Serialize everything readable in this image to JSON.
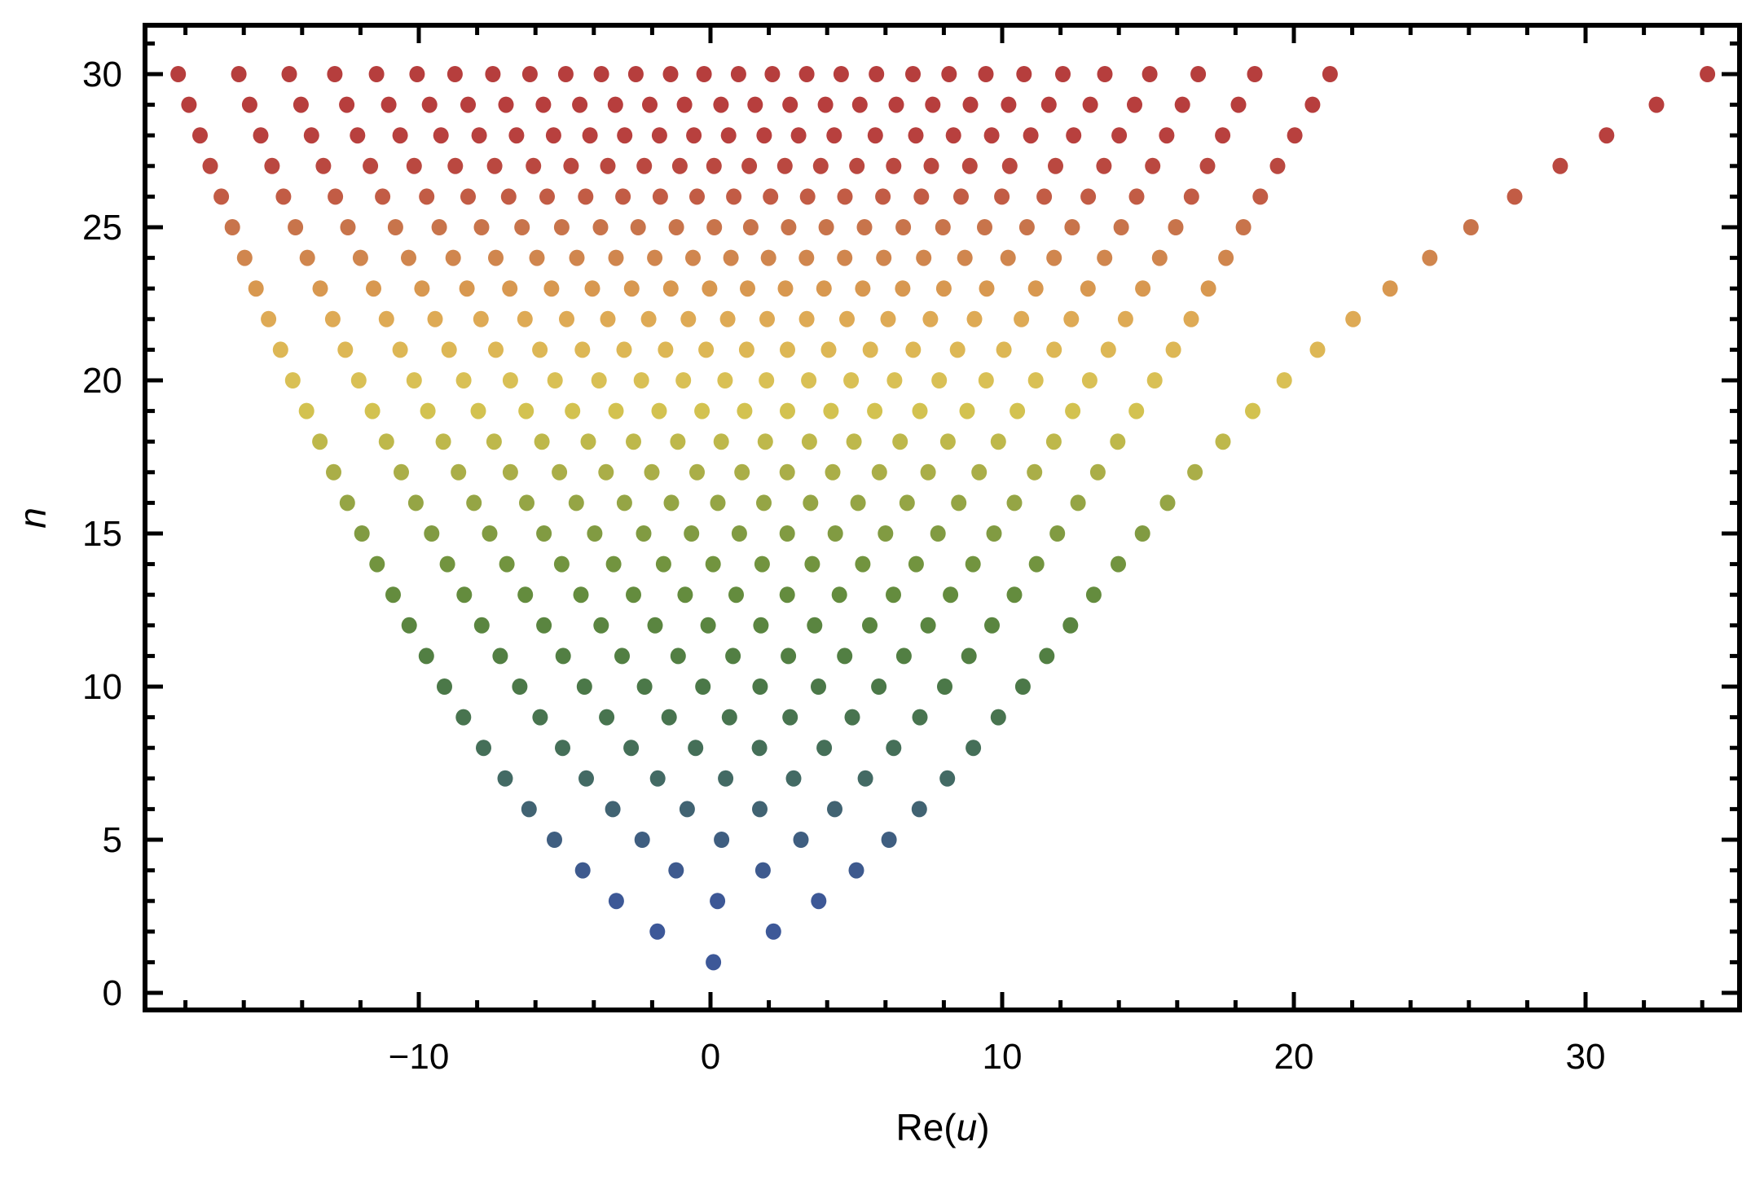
{
  "chart_data": {
    "type": "scatter",
    "title": "",
    "xlabel": "Re(u)",
    "ylabel": "n",
    "xlim": [
      -19.4,
      35.4
    ],
    "ylim": [
      -0.6,
      31.6
    ],
    "grid": false,
    "legend": null,
    "frame": true,
    "x_ticks": [
      -10,
      0,
      10,
      20,
      30
    ],
    "x_tick_labels": [
      "−10",
      "0",
      "10",
      "20",
      "30"
    ],
    "x_minor_step": 2,
    "y_ticks": [
      0,
      5,
      10,
      15,
      20,
      25,
      30
    ],
    "y_tick_labels": [
      "0",
      "5",
      "10",
      "15",
      "20",
      "25",
      "30"
    ],
    "y_minor_step": 1,
    "color_scheme": "n-gradient: blue (n=1) to green to yellow to orange to red (n=30)",
    "series": [
      {
        "n": 1,
        "color": "#3D5898",
        "x": [
          0.1
        ]
      },
      {
        "n": 2,
        "color": "#3D5898",
        "x": [
          -1.82,
          2.16
        ]
      },
      {
        "n": 3,
        "color": "#3D5896",
        "x": [
          -3.23,
          0.24,
          3.71
        ]
      },
      {
        "n": 4,
        "color": "#3E5A8E",
        "x": [
          -4.38,
          -1.18,
          1.8,
          5.0
        ]
      },
      {
        "n": 5,
        "color": "#3F5E80",
        "x": [
          -5.35,
          -2.34,
          0.38,
          3.1,
          6.12
        ]
      },
      {
        "n": 6,
        "color": "#416372",
        "x": [
          -6.22,
          -3.35,
          -0.8,
          1.69,
          4.26,
          7.16
        ]
      },
      {
        "n": 7,
        "color": "#436A64",
        "x": [
          -7.04,
          -4.26,
          -1.81,
          0.52,
          2.85,
          5.31,
          8.12
        ]
      },
      {
        "n": 8,
        "color": "#456F58",
        "x": [
          -7.78,
          -5.07,
          -2.72,
          -0.51,
          1.68,
          3.9,
          6.28,
          9.01
        ]
      },
      {
        "n": 9,
        "color": "#48744F",
        "x": [
          -8.47,
          -5.84,
          -3.56,
          -1.42,
          0.65,
          2.73,
          4.86,
          7.18,
          9.87
        ]
      },
      {
        "n": 10,
        "color": "#4B7848",
        "x": [
          -9.12,
          -6.54,
          -4.32,
          -2.26,
          -0.26,
          1.7,
          3.7,
          5.77,
          8.03,
          10.71
        ]
      },
      {
        "n": 11,
        "color": "#527F43",
        "x": [
          -9.74,
          -7.21,
          -5.05,
          -3.03,
          -1.11,
          0.77,
          2.67,
          4.6,
          6.63,
          8.86,
          11.53
        ]
      },
      {
        "n": 12,
        "color": "#5A8540",
        "x": [
          -10.33,
          -7.84,
          -5.71,
          -3.75,
          -1.9,
          -0.08,
          1.73,
          3.57,
          5.46,
          7.46,
          9.65,
          12.34
        ]
      },
      {
        "n": 13,
        "color": "#648C3E",
        "x": [
          -10.88,
          -8.44,
          -6.35,
          -4.44,
          -2.64,
          -0.87,
          0.88,
          2.63,
          4.42,
          6.27,
          8.23,
          10.42,
          13.14
        ]
      },
      {
        "n": 14,
        "color": "#72943F",
        "x": [
          -11.43,
          -9.02,
          -6.98,
          -5.1,
          -3.32,
          -1.61,
          0.09,
          1.77,
          3.49,
          5.22,
          7.05,
          9.0,
          11.18,
          13.98
        ]
      },
      {
        "n": 15,
        "color": "#819B42",
        "x": [
          -11.95,
          -9.56,
          -7.57,
          -5.71,
          -3.97,
          -2.29,
          -0.65,
          0.99,
          2.63,
          4.28,
          6.0,
          7.8,
          9.72,
          11.89,
          14.81
        ]
      },
      {
        "n": 16,
        "color": "#95A545",
        "x": [
          -12.45,
          -10.1,
          -8.11,
          -6.3,
          -4.6,
          -2.95,
          -1.34,
          0.25,
          1.83,
          3.43,
          5.06,
          6.74,
          8.51,
          10.42,
          12.6,
          15.67
        ]
      },
      {
        "n": 17,
        "color": "#AAAE48",
        "x": [
          -12.92,
          -10.6,
          -8.64,
          -6.86,
          -5.18,
          -3.58,
          -2.01,
          -0.46,
          1.08,
          2.63,
          4.19,
          5.79,
          7.46,
          9.21,
          11.11,
          13.28,
          16.61
        ]
      },
      {
        "n": 18,
        "color": "#BEB84B",
        "x": [
          -13.39,
          -11.11,
          -9.16,
          -7.42,
          -5.78,
          -4.19,
          -2.64,
          -1.12,
          0.37,
          1.88,
          3.39,
          4.92,
          6.5,
          8.14,
          9.87,
          11.77,
          13.96,
          17.57
        ]
      },
      {
        "n": 19,
        "color": "#D3C250",
        "x": [
          -13.85,
          -11.59,
          -9.69,
          -7.96,
          -6.32,
          -4.73,
          -3.24,
          -1.76,
          -0.29,
          1.17,
          2.64,
          4.13,
          5.63,
          7.18,
          8.8,
          10.52,
          12.42,
          14.6,
          18.59
        ]
      },
      {
        "n": 20,
        "color": "#D9C055",
        "x": [
          -14.32,
          -12.06,
          -10.16,
          -8.46,
          -6.86,
          -5.33,
          -3.82,
          -2.37,
          -0.93,
          0.5,
          1.92,
          3.37,
          4.82,
          6.31,
          7.84,
          9.45,
          11.15,
          13.0,
          15.23,
          19.67
        ]
      },
      {
        "n": 21,
        "color": "#DDB755",
        "x": [
          -14.74,
          -12.52,
          -10.64,
          -8.96,
          -7.36,
          -5.85,
          -4.39,
          -2.96,
          -1.54,
          -0.15,
          1.24,
          2.64,
          4.05,
          5.48,
          6.95,
          8.47,
          10.06,
          11.78,
          13.64,
          15.87,
          20.81
        ]
      },
      {
        "n": 22,
        "color": "#DEAA55",
        "x": [
          -15.15,
          -12.95,
          -11.11,
          -9.44,
          -7.87,
          -6.36,
          -4.93,
          -3.52,
          -2.12,
          -0.76,
          0.59,
          1.94,
          3.3,
          4.68,
          6.09,
          7.54,
          9.05,
          10.66,
          12.37,
          14.23,
          16.48,
          22.03
        ]
      },
      {
        "n": 23,
        "color": "#D89850",
        "x": [
          -15.58,
          -13.38,
          -11.55,
          -9.89,
          -8.35,
          -6.88,
          -5.45,
          -4.05,
          -2.7,
          -1.36,
          -0.03,
          1.27,
          2.57,
          3.89,
          5.22,
          6.59,
          8.0,
          9.47,
          11.15,
          12.94,
          14.82,
          17.07,
          23.3
        ]
      },
      {
        "n": 24,
        "color": "#D0864E",
        "x": [
          -15.97,
          -13.82,
          -12.0,
          -10.35,
          -8.82,
          -7.36,
          -5.95,
          -4.58,
          -3.24,
          -1.91,
          -0.6,
          0.7,
          1.99,
          3.29,
          4.6,
          5.94,
          7.31,
          8.72,
          10.2,
          11.78,
          13.51,
          15.4,
          17.67,
          24.66
        ]
      },
      {
        "n": 25,
        "color": "#C8744B",
        "x": [
          -16.39,
          -14.23,
          -12.43,
          -10.8,
          -9.3,
          -7.85,
          -6.46,
          -5.1,
          -3.77,
          -2.48,
          -1.17,
          0.13,
          1.38,
          2.68,
          3.97,
          5.28,
          6.61,
          7.97,
          9.4,
          10.85,
          12.4,
          14.08,
          15.95,
          18.27,
          26.07
        ]
      },
      {
        "n": 26,
        "color": "#C25C45",
        "x": [
          -16.77,
          -14.64,
          -12.86,
          -11.24,
          -9.73,
          -8.31,
          -6.92,
          -5.6,
          -4.28,
          -3.0,
          -1.72,
          -0.46,
          0.8,
          2.06,
          3.33,
          4.61,
          5.91,
          7.23,
          8.59,
          9.99,
          11.44,
          12.95,
          14.61,
          16.49,
          18.85,
          27.57
        ]
      },
      {
        "n": 27,
        "color": "#BA4840",
        "x": [
          -17.15,
          -15.03,
          -13.27,
          -11.66,
          -10.16,
          -8.75,
          -7.4,
          -6.07,
          -4.78,
          -3.52,
          -2.27,
          -1.05,
          0.12,
          1.33,
          2.55,
          3.78,
          5.02,
          6.28,
          7.57,
          8.89,
          10.26,
          11.83,
          13.49,
          15.16,
          17.04,
          19.44,
          29.13
        ]
      },
      {
        "n": 28,
        "color": "#B8403E",
        "x": [
          -17.5,
          -15.42,
          -13.68,
          -12.1,
          -10.64,
          -9.24,
          -7.93,
          -6.65,
          -5.38,
          -4.13,
          -2.94,
          -1.75,
          -0.57,
          0.62,
          1.84,
          3.02,
          4.24,
          5.65,
          7.04,
          8.33,
          9.64,
          10.98,
          12.45,
          14.01,
          15.64,
          17.56,
          20.03,
          30.72
        ]
      },
      {
        "n": 29,
        "color": "#B73E3D",
        "x": [
          -17.88,
          -15.8,
          -14.04,
          -12.47,
          -11.03,
          -9.63,
          -8.31,
          -7.01,
          -5.73,
          -4.48,
          -3.26,
          -2.08,
          -0.89,
          0.36,
          1.53,
          2.73,
          3.94,
          5.12,
          6.37,
          7.62,
          8.91,
          10.22,
          11.6,
          13.02,
          14.54,
          16.18,
          18.1,
          20.64,
          32.43
        ]
      },
      {
        "n": 30,
        "color": "#B63E3D",
        "x": [
          -18.25,
          -16.17,
          -14.44,
          -12.88,
          -11.45,
          -10.06,
          -8.76,
          -7.46,
          -6.19,
          -4.96,
          -3.74,
          -2.56,
          -1.37,
          -0.22,
          0.96,
          2.12,
          3.3,
          4.48,
          5.69,
          6.94,
          8.18,
          9.44,
          10.75,
          12.08,
          13.52,
          15.06,
          16.72,
          18.66,
          21.24,
          34.18
        ]
      }
    ]
  },
  "axes": {
    "x_title": "Re(",
    "x_title_var": "u",
    "x_title_end": ")",
    "y_title": "n"
  }
}
